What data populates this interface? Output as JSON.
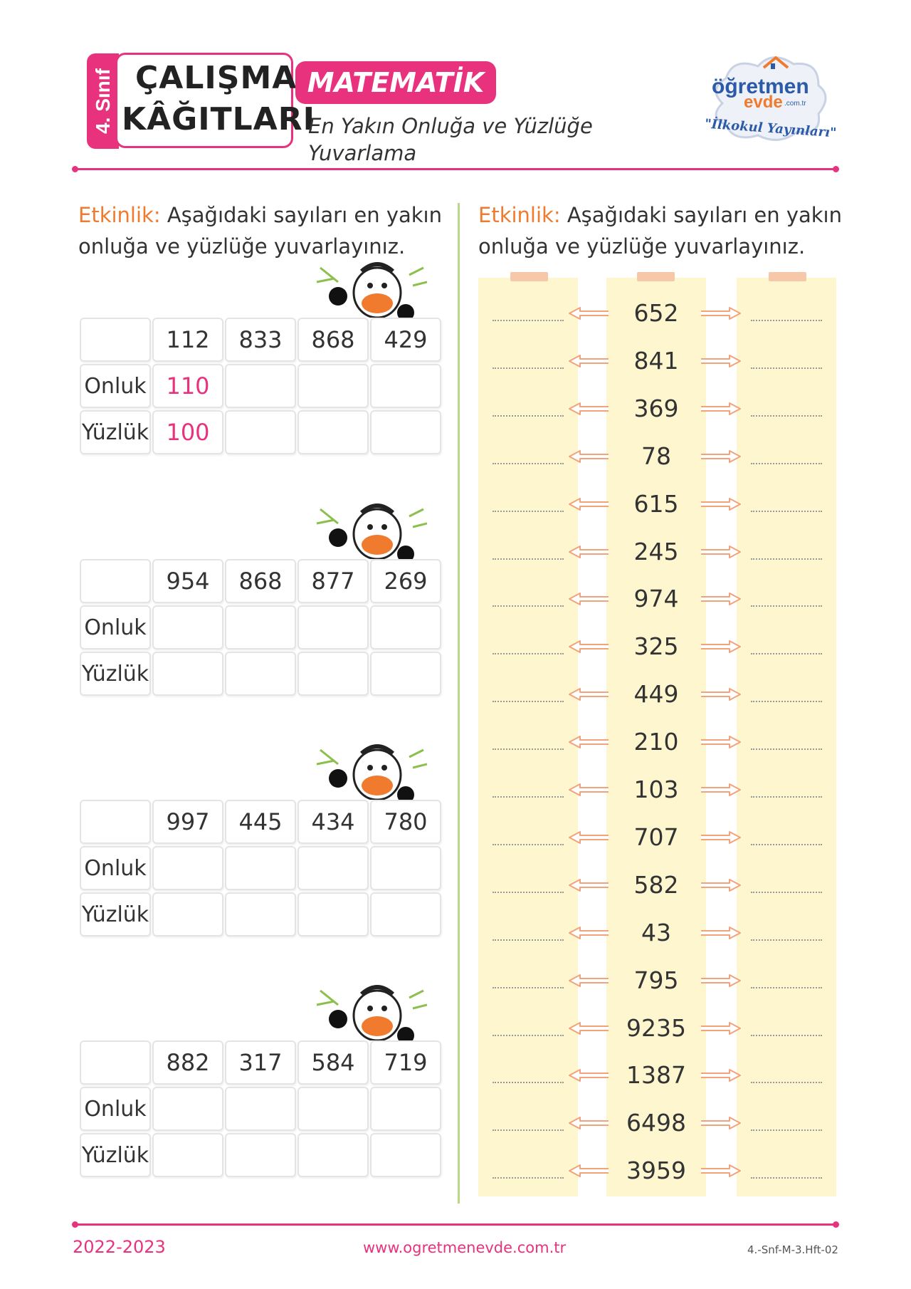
{
  "header": {
    "grade": "4. Sınıf",
    "title_line1": "ÇALIŞMA",
    "title_line2": "KÂĞITLARI",
    "subject": "MATEMATİK",
    "topic": "En Yakın Onluğa ve Yüzlüğe Yuvarlama",
    "logo_word1": "öğretmen",
    "logo_word2": "evde",
    "logo_domain": ".com.tr",
    "logo_slogan": "\"İlkokul Yayınları\""
  },
  "left_activity": {
    "label": "Etkinlik:",
    "line1": " Aşağıdaki sayıları en yakın",
    "line2": "onluğa ve yüzlüğe yuvarlayınız."
  },
  "right_activity": {
    "label": "Etkinlik:",
    "line1": " Aşağıdaki sayıları en yakın",
    "line2": "onluğa ve yüzlüğe yuvarlayınız."
  },
  "tables": [
    {
      "numbers": [
        "112",
        "833",
        "868",
        "429"
      ],
      "row1_label": "Onluk",
      "row2_label": "Yüzlük",
      "onluk": [
        "110",
        "",
        "",
        ""
      ],
      "yuzluk": [
        "100",
        "",
        "",
        ""
      ]
    },
    {
      "numbers": [
        "954",
        "868",
        "877",
        "269"
      ],
      "row1_label": "Onluk",
      "row2_label": "Yüzlük",
      "onluk": [
        "",
        "",
        "",
        ""
      ],
      "yuzluk": [
        "",
        "",
        "",
        ""
      ]
    },
    {
      "numbers": [
        "997",
        "445",
        "434",
        "780"
      ],
      "row1_label": "Onluk",
      "row2_label": "Yüzlük",
      "onluk": [
        "",
        "",
        "",
        ""
      ],
      "yuzluk": [
        "",
        "",
        "",
        ""
      ]
    },
    {
      "numbers": [
        "882",
        "317",
        "584",
        "719"
      ],
      "row1_label": "Onluk",
      "row2_label": "Yüzlük",
      "onluk": [
        "",
        "",
        "",
        ""
      ],
      "yuzluk": [
        "",
        "",
        "",
        ""
      ]
    }
  ],
  "right_numbers": [
    "652",
    "841",
    "369",
    "78",
    "615",
    "245",
    "974",
    "325",
    "449",
    "210",
    "103",
    "707",
    "582",
    "43",
    "795",
    "9235",
    "1387",
    "6498",
    "3959"
  ],
  "footer": {
    "year": "2022-2023",
    "url": "www.ogretmenevde.com.tr",
    "code": "4.-Snf-M-3.Hft-02"
  },
  "colors": {
    "accent": "#e8327d",
    "label_orange": "#f07b2e",
    "strip": "#fdf6cf",
    "divider": "#b9d98a"
  }
}
